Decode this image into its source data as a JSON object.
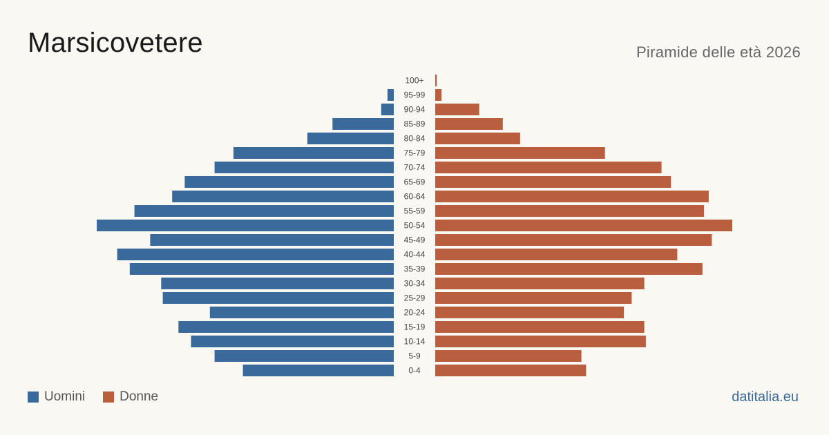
{
  "header": {
    "title": "Marsicovetere",
    "subtitle": "Piramide delle età 2026"
  },
  "legend": {
    "male_label": "Uomini",
    "female_label": "Donne"
  },
  "footer": {
    "site": "datitalia.eu"
  },
  "colors": {
    "male": "#3a6a9b",
    "female": "#b95f3e"
  },
  "chart_data": {
    "type": "bar",
    "orientation": "horizontal-pyramid",
    "categories": [
      "100+",
      "95-99",
      "90-94",
      "85-89",
      "80-84",
      "75-79",
      "70-74",
      "65-69",
      "60-64",
      "55-59",
      "50-54",
      "45-49",
      "40-44",
      "35-39",
      "30-34",
      "25-29",
      "20-24",
      "15-19",
      "10-14",
      "5-9",
      "0-4"
    ],
    "series": [
      {
        "name": "Uomini",
        "values": [
          0,
          4,
          8,
          39,
          55,
          102,
          114,
          133,
          141,
          165,
          189,
          155,
          176,
          168,
          148,
          147,
          117,
          137,
          129,
          114,
          96
        ]
      },
      {
        "name": "Donne",
        "values": [
          1,
          4,
          28,
          43,
          54,
          108,
          144,
          150,
          174,
          171,
          189,
          176,
          154,
          170,
          133,
          125,
          120,
          133,
          134,
          93,
          96
        ]
      }
    ],
    "grid": false,
    "legend_position": "bottom-left"
  }
}
